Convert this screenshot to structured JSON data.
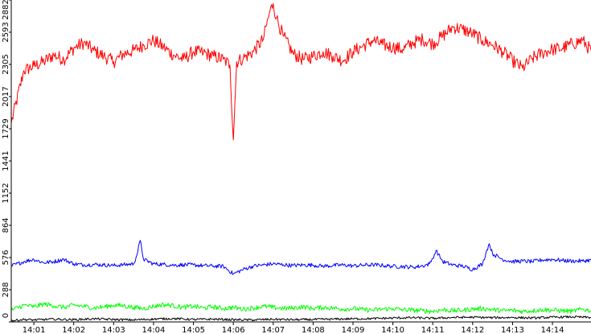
{
  "chart_data": {
    "type": "line",
    "grid": false,
    "legend": "none",
    "ylim": [
      0,
      2882
    ],
    "y_ticks": [
      "0",
      "288",
      "576",
      "864",
      "1152",
      "1441",
      "1729",
      "2017",
      "2305",
      "2593",
      "2882"
    ],
    "x_ticks": [
      "14:01",
      "14:02",
      "14:03",
      "14:04",
      "14:05",
      "14:06",
      "14:07",
      "14:08",
      "14:09",
      "14:10",
      "14:11",
      "14:12",
      "14:13",
      "14:14"
    ],
    "x_range_minutes": [
      "14:00:26",
      "14:14:58"
    ],
    "series": [
      {
        "color": "#ff0000",
        "x": [
          "14:00:26",
          "14:00:45",
          "14:01:00",
          "14:01:15",
          "14:01:30",
          "14:01:45",
          "14:02:00",
          "14:02:15",
          "14:02:30",
          "14:02:45",
          "14:03:00",
          "14:03:15",
          "14:03:30",
          "14:03:45",
          "14:04:00",
          "14:04:15",
          "14:04:30",
          "14:04:45",
          "14:05:00",
          "14:05:15",
          "14:05:30",
          "14:05:45",
          "14:05:55",
          "14:06:00",
          "14:06:05",
          "14:06:15",
          "14:06:30",
          "14:06:45",
          "14:06:55",
          "14:07:00",
          "14:07:05",
          "14:07:15",
          "14:07:30",
          "14:07:45",
          "14:08:00",
          "14:08:15",
          "14:08:30",
          "14:08:45",
          "14:09:00",
          "14:09:15",
          "14:09:30",
          "14:09:45",
          "14:10:00",
          "14:10:15",
          "14:10:30",
          "14:10:45",
          "14:11:00",
          "14:11:15",
          "14:11:30",
          "14:11:45",
          "14:12:00",
          "14:12:15",
          "14:12:30",
          "14:12:45",
          "14:13:00",
          "14:13:15",
          "14:13:30",
          "14:13:45",
          "14:14:00",
          "14:14:15",
          "14:14:30",
          "14:14:45",
          "14:14:58"
        ],
        "values": [
          1780,
          2250,
          2290,
          2330,
          2390,
          2350,
          2450,
          2500,
          2430,
          2380,
          2330,
          2400,
          2430,
          2480,
          2520,
          2460,
          2390,
          2350,
          2420,
          2410,
          2380,
          2350,
          2300,
          1630,
          2330,
          2360,
          2420,
          2530,
          2780,
          2850,
          2720,
          2560,
          2400,
          2350,
          2380,
          2420,
          2380,
          2340,
          2420,
          2470,
          2520,
          2480,
          2460,
          2440,
          2500,
          2530,
          2490,
          2560,
          2640,
          2620,
          2580,
          2520,
          2480,
          2420,
          2340,
          2270,
          2360,
          2410,
          2440,
          2450,
          2490,
          2520,
          2430
        ]
      },
      {
        "color": "#0000ff",
        "x": [
          "14:00:26",
          "14:00:45",
          "14:01:00",
          "14:01:15",
          "14:01:30",
          "14:01:45",
          "14:02:00",
          "14:02:15",
          "14:02:30",
          "14:02:45",
          "14:03:00",
          "14:03:15",
          "14:03:30",
          "14:03:35",
          "14:03:40",
          "14:03:45",
          "14:04:00",
          "14:04:15",
          "14:04:30",
          "14:04:45",
          "14:05:00",
          "14:05:15",
          "14:05:30",
          "14:05:45",
          "14:06:00",
          "14:06:15",
          "14:06:30",
          "14:06:45",
          "14:07:00",
          "14:07:15",
          "14:07:30",
          "14:07:45",
          "14:08:00",
          "14:08:15",
          "14:08:30",
          "14:08:45",
          "14:09:00",
          "14:09:15",
          "14:09:30",
          "14:09:45",
          "14:10:00",
          "14:10:15",
          "14:10:30",
          "14:10:45",
          "14:10:55",
          "14:11:00",
          "14:11:05",
          "14:11:15",
          "14:11:30",
          "14:11:45",
          "14:12:00",
          "14:12:15",
          "14:12:20",
          "14:12:25",
          "14:12:30",
          "14:12:45",
          "14:13:00",
          "14:13:15",
          "14:13:30",
          "14:13:45",
          "14:14:00",
          "14:14:15",
          "14:14:30",
          "14:14:45",
          "14:14:58"
        ],
        "values": [
          500,
          540,
          560,
          530,
          540,
          560,
          520,
          510,
          515,
          510,
          505,
          512,
          520,
          600,
          730,
          560,
          520,
          515,
          508,
          512,
          510,
          504,
          500,
          498,
          430,
          470,
          500,
          510,
          520,
          512,
          505,
          510,
          508,
          500,
          505,
          510,
          502,
          508,
          512,
          505,
          498,
          496,
          490,
          502,
          520,
          570,
          640,
          540,
          510,
          500,
          470,
          520,
          620,
          700,
          610,
          560,
          540,
          545,
          540,
          555,
          560,
          550,
          545,
          545,
          555
        ]
      },
      {
        "color": "#00ff00",
        "x": [
          "14:00:26",
          "14:00:45",
          "14:01:00",
          "14:01:15",
          "14:01:30",
          "14:01:45",
          "14:02:00",
          "14:02:15",
          "14:02:30",
          "14:02:45",
          "14:03:00",
          "14:03:15",
          "14:03:30",
          "14:03:45",
          "14:04:00",
          "14:04:15",
          "14:04:30",
          "14:04:45",
          "14:05:00",
          "14:05:15",
          "14:05:30",
          "14:05:45",
          "14:06:00",
          "14:06:15",
          "14:06:30",
          "14:06:45",
          "14:07:00",
          "14:07:15",
          "14:07:30",
          "14:07:45",
          "14:08:00",
          "14:08:15",
          "14:08:30",
          "14:08:45",
          "14:09:00",
          "14:09:15",
          "14:09:30",
          "14:09:45",
          "14:10:00",
          "14:10:15",
          "14:10:30",
          "14:10:45",
          "14:11:00",
          "14:11:15",
          "14:11:30",
          "14:11:45",
          "14:12:00",
          "14:12:15",
          "14:12:30",
          "14:12:45",
          "14:13:00",
          "14:13:15",
          "14:13:30",
          "14:13:45",
          "14:14:00",
          "14:14:15",
          "14:14:30",
          "14:14:45",
          "14:14:58"
        ],
        "values": [
          105,
          150,
          135,
          160,
          145,
          130,
          150,
          140,
          125,
          135,
          150,
          145,
          130,
          120,
          140,
          155,
          145,
          130,
          140,
          125,
          135,
          120,
          130,
          115,
          125,
          140,
          130,
          120,
          125,
          135,
          120,
          130,
          125,
          115,
          120,
          110,
          105,
          115,
          120,
          110,
          105,
          100,
          95,
          110,
          100,
          105,
          115,
          120,
          110,
          100,
          105,
          95,
          100,
          110,
          105,
          100,
          95,
          115,
          100
        ]
      },
      {
        "color": "#000000",
        "x": [
          "14:00:26",
          "14:00:45",
          "14:01:00",
          "14:01:30",
          "14:02:00",
          "14:02:30",
          "14:03:00",
          "14:03:30",
          "14:04:00",
          "14:04:30",
          "14:05:00",
          "14:05:30",
          "14:06:00",
          "14:06:30",
          "14:07:00",
          "14:07:30",
          "14:08:00",
          "14:08:30",
          "14:09:00",
          "14:09:30",
          "14:10:00",
          "14:10:30",
          "14:11:00",
          "14:11:30",
          "14:12:00",
          "14:12:30",
          "14:13:00",
          "14:13:30",
          "14:14:00",
          "14:14:30",
          "14:14:58"
        ],
        "values": [
          10,
          22,
          18,
          25,
          20,
          28,
          22,
          18,
          26,
          30,
          22,
          25,
          20,
          18,
          24,
          20,
          22,
          25,
          28,
          30,
          35,
          38,
          32,
          40,
          42,
          38,
          40,
          35,
          42,
          45,
          40
        ]
      }
    ]
  }
}
